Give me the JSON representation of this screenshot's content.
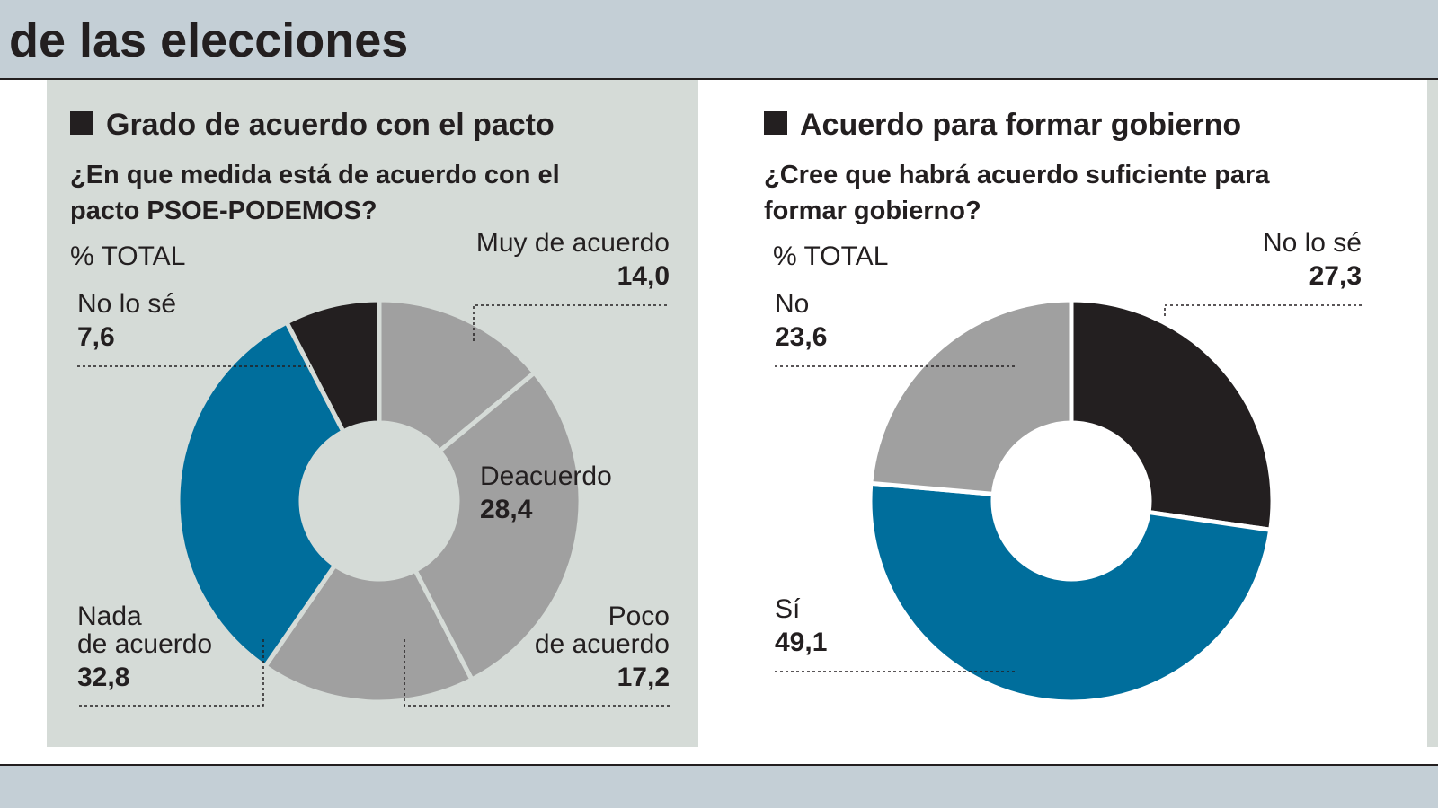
{
  "header": {
    "title": "de las elecciones"
  },
  "chart_data": [
    {
      "type": "pie",
      "donut": true,
      "title": "Grado de acuerdo con el pacto",
      "subtitle": "¿En que medida está de acuerdo con el\npacto PSOE-PODEMOS?",
      "unit_label": "% TOTAL",
      "categories": [
        "Muy de acuerdo",
        "Deacuerdo",
        "Poco\nde acuerdo",
        "Nada\nde acuerdo",
        "No lo sé"
      ],
      "values": [
        14.0,
        28.4,
        17.2,
        32.8,
        7.6
      ],
      "value_labels": [
        "14,0",
        "28,4",
        "17,2",
        "32,8",
        "7,6"
      ],
      "colors": [
        "#a0a0a0",
        "#a0a0a0",
        "#a0a0a0",
        "#006e9c",
        "#231f20"
      ]
    },
    {
      "type": "pie",
      "donut": true,
      "title": "Acuerdo para formar gobierno",
      "subtitle": "¿Cree que habrá acuerdo suficiente para\nformar gobierno?",
      "unit_label": "% TOTAL",
      "categories": [
        "No lo sé",
        "Sí",
        "No"
      ],
      "values": [
        27.3,
        49.1,
        23.6
      ],
      "value_labels": [
        "27,3",
        "49,1",
        "23,6"
      ],
      "colors": [
        "#231f20",
        "#006e9c",
        "#a0a0a0"
      ]
    }
  ]
}
